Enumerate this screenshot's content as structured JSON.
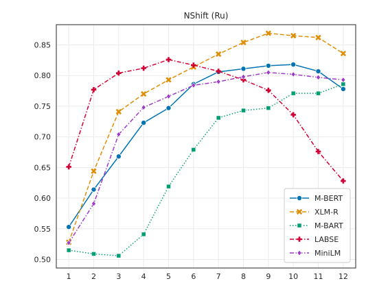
{
  "chart_data": {
    "type": "line",
    "title": "NShift (Ru)",
    "xlabel": "",
    "ylabel": "",
    "x": [
      1,
      2,
      3,
      4,
      5,
      6,
      7,
      8,
      9,
      10,
      11,
      12
    ],
    "xlim": [
      0.5,
      12.5
    ],
    "ylim": [
      0.486,
      0.883
    ],
    "yticks": [
      0.5,
      0.55,
      0.6,
      0.65,
      0.7,
      0.75,
      0.8,
      0.85
    ],
    "ytick_labels": [
      "0.50",
      "0.55",
      "0.60",
      "0.65",
      "0.70",
      "0.75",
      "0.80",
      "0.85"
    ],
    "xtick_labels": [
      "1",
      "2",
      "3",
      "4",
      "5",
      "6",
      "7",
      "8",
      "9",
      "10",
      "11",
      "12"
    ],
    "grid": true,
    "legend_position": "lower-right",
    "series": [
      {
        "name": "M-BERT",
        "color": "#0173b2",
        "dash": "solid",
        "marker": "circle",
        "values": [
          0.553,
          0.614,
          0.668,
          0.723,
          0.747,
          0.786,
          0.806,
          0.811,
          0.816,
          0.818,
          0.807,
          0.778
        ]
      },
      {
        "name": "XLM-R",
        "color": "#de8f05",
        "dash": "dashed",
        "marker": "x",
        "values": [
          0.528,
          0.644,
          0.741,
          0.77,
          0.793,
          0.814,
          0.835,
          0.854,
          0.869,
          0.865,
          0.862,
          0.836
        ]
      },
      {
        "name": "M-BART",
        "color": "#029e73",
        "dash": "dotted",
        "marker": "square",
        "values": [
          0.515,
          0.509,
          0.506,
          0.541,
          0.619,
          0.679,
          0.731,
          0.743,
          0.747,
          0.771,
          0.771,
          0.786
        ]
      },
      {
        "name": "LABSE",
        "color": "#d00035",
        "dash": "dashdot",
        "marker": "plus",
        "values": [
          0.651,
          0.777,
          0.804,
          0.812,
          0.826,
          0.817,
          0.807,
          0.793,
          0.776,
          0.736,
          0.676,
          0.628
        ]
      },
      {
        "name": "MiniLM",
        "color": "#9d3ac7",
        "dash": "dashdot",
        "marker": "diamond",
        "values": [
          0.527,
          0.591,
          0.704,
          0.748,
          0.766,
          0.784,
          0.79,
          0.798,
          0.805,
          0.802,
          0.797,
          0.793
        ]
      }
    ]
  }
}
